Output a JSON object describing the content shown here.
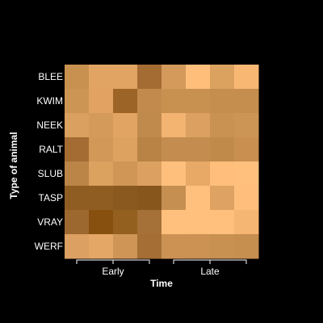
{
  "chart_data": {
    "type": "heatmap",
    "xlabel": "Time",
    "ylabel": "Type of animal",
    "rows": [
      "BLEE",
      "KWIM",
      "NEEK",
      "RALT",
      "SLUB",
      "TASP",
      "VRAY",
      "WERF"
    ],
    "column_count": 8,
    "column_groups": [
      {
        "label": "Early",
        "columns": [
          0,
          3
        ]
      },
      {
        "label": "Late",
        "columns": [
          4,
          7
        ]
      }
    ],
    "cell_colors": [
      [
        "#c8914f",
        "#e2a463",
        "#e2a463",
        "#a46c32",
        "#d39a5c",
        "#ffbf7b",
        "#dba25f",
        "#f8b874"
      ],
      [
        "#cd9554",
        "#e2a362",
        "#9d6427",
        "#c28a4c",
        "#c8914f",
        "#c8914f",
        "#c68e4e",
        "#c68e4e"
      ],
      [
        "#daa05f",
        "#d49a59",
        "#e2a462",
        "#c08a4c",
        "#f3b472",
        "#dca160",
        "#c99252",
        "#cd9555"
      ],
      [
        "#a46c32",
        "#d29858",
        "#dda160",
        "#b98346",
        "#c48d4f",
        "#c48d4f",
        "#c08a4b",
        "#c98f50"
      ],
      [
        "#bb8548",
        "#dba15f",
        "#d09656",
        "#dca161",
        "#ffbf7c",
        "#e8a967",
        "#ffbe7b",
        "#ffc07d"
      ],
      [
        "#8f5d22",
        "#8f5d22",
        "#8a5920",
        "#87561d",
        "#c68f52",
        "#ffc07d",
        "#dea363",
        "#ffbe7b"
      ],
      [
        "#9d6830",
        "#87500f",
        "#93601f",
        "#a67039",
        "#ffc07d",
        "#ffc07d",
        "#ffc07d",
        "#f6b673"
      ],
      [
        "#dba062",
        "#e5a766",
        "#cf9556",
        "#a46e35",
        "#cc9254",
        "#cb9254",
        "#c89051",
        "#c68e4f"
      ]
    ]
  }
}
